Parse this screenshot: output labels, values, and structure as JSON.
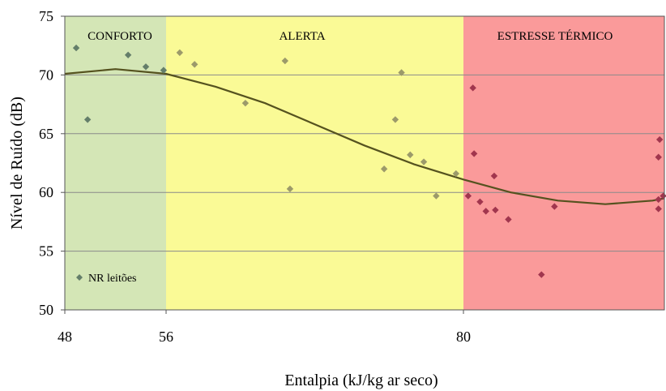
{
  "chart_data": {
    "type": "scatter",
    "xlabel": "Entalpia (kJ/kg ar seco)",
    "ylabel": "Nível de Ruído (dB)",
    "xlim": [
      48,
      97
    ],
    "ylim": [
      50,
      75
    ],
    "x_ticks": [
      48,
      56,
      80
    ],
    "y_ticks": [
      50,
      55,
      60,
      65,
      70,
      75
    ],
    "grid": "horizontal",
    "zones": [
      {
        "label": "CONFORTO",
        "x_start": 48,
        "x_end": 56,
        "color": "#d4e6b6"
      },
      {
        "label": "ALERTA",
        "x_start": 56,
        "x_end": 80,
        "color": "#fafa96"
      },
      {
        "label": "ESTRESSE TÉRMICO",
        "x_start": 80,
        "x_end": 97,
        "color": "#fa9a9a"
      }
    ],
    "series": [
      {
        "name": "NR leitões",
        "marker": "diamond",
        "points": [
          {
            "x": 48.9,
            "y": 72.3
          },
          {
            "x": 49.8,
            "y": 66.2
          },
          {
            "x": 53.0,
            "y": 71.7
          },
          {
            "x": 54.4,
            "y": 70.7
          },
          {
            "x": 55.8,
            "y": 70.4
          },
          {
            "x": 57.1,
            "y": 71.9
          },
          {
            "x": 58.3,
            "y": 70.9
          },
          {
            "x": 62.4,
            "y": 67.6
          },
          {
            "x": 65.6,
            "y": 71.2
          },
          {
            "x": 66.0,
            "y": 60.3
          },
          {
            "x": 73.6,
            "y": 62.0
          },
          {
            "x": 74.5,
            "y": 66.2
          },
          {
            "x": 75.0,
            "y": 70.2
          },
          {
            "x": 75.7,
            "y": 63.2
          },
          {
            "x": 76.8,
            "y": 62.6
          },
          {
            "x": 77.8,
            "y": 59.7
          },
          {
            "x": 79.4,
            "y": 61.6
          },
          {
            "x": 80.4,
            "y": 59.7
          },
          {
            "x": 80.8,
            "y": 68.9
          },
          {
            "x": 80.9,
            "y": 63.3
          },
          {
            "x": 81.4,
            "y": 59.2
          },
          {
            "x": 81.9,
            "y": 58.4
          },
          {
            "x": 82.6,
            "y": 61.4
          },
          {
            "x": 82.7,
            "y": 58.5
          },
          {
            "x": 83.8,
            "y": 57.7
          },
          {
            "x": 86.6,
            "y": 53.0
          },
          {
            "x": 87.7,
            "y": 58.8
          },
          {
            "x": 96.5,
            "y": 58.6
          },
          {
            "x": 96.5,
            "y": 59.4
          },
          {
            "x": 96.5,
            "y": 63.0
          },
          {
            "x": 96.6,
            "y": 64.5
          },
          {
            "x": 96.9,
            "y": 59.7
          }
        ]
      }
    ],
    "trendline": {
      "x": [
        48,
        52,
        56,
        60,
        64,
        68,
        72,
        76,
        80,
        84,
        88,
        92,
        96,
        97
      ],
      "y": [
        70.1,
        70.5,
        70.1,
        69.0,
        67.6,
        65.8,
        64.0,
        62.4,
        61.1,
        60.0,
        59.3,
        59.0,
        59.3,
        59.5
      ]
    },
    "legend": {
      "position": "bottom-left"
    }
  }
}
